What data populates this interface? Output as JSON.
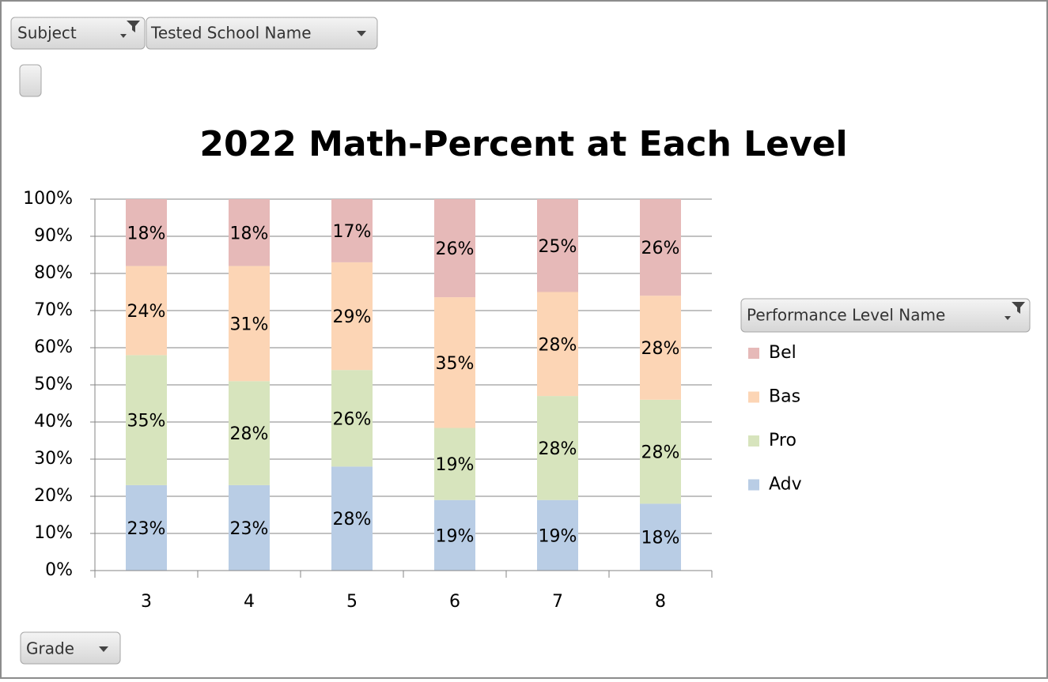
{
  "controls": {
    "subject": "Subject",
    "school": "Tested School Name",
    "legend_field": "Performance Level Name",
    "grade": "Grade"
  },
  "chart_data": {
    "type": "stacked_bar",
    "title": "2022 Math-Percent at Each Level",
    "categories": [
      "3",
      "4",
      "5",
      "6",
      "7",
      "8"
    ],
    "series": [
      {
        "name": "Adv",
        "color": "#b9cde5",
        "values": [
          23,
          23,
          28,
          19,
          19,
          18
        ],
        "value_labels": [
          "23%",
          "23%",
          "28%",
          "19%",
          "19%",
          "18%"
        ]
      },
      {
        "name": "Pro",
        "color": "#d7e4bd",
        "values": [
          35,
          28,
          26,
          19.4,
          28,
          28
        ],
        "value_labels": [
          "35%",
          "28%",
          "26%",
          "19%",
          "28%",
          "28%"
        ]
      },
      {
        "name": "Bas",
        "color": "#fcd5b5",
        "values": [
          24,
          31,
          29,
          35.2,
          28,
          28
        ],
        "value_labels": [
          "24%",
          "31%",
          "29%",
          "35%",
          "28%",
          "28%"
        ]
      },
      {
        "name": "Bel",
        "color": "#e6b9b8",
        "values": [
          18,
          18,
          17,
          26.4,
          25,
          26
        ],
        "value_labels": [
          "18%",
          "18%",
          "17%",
          "26%",
          "25%",
          "26%"
        ]
      }
    ],
    "ylim": [
      0,
      100
    ],
    "yticks": [
      {
        "value": 0,
        "label": "0%"
      },
      {
        "value": 10,
        "label": "10%"
      },
      {
        "value": 20,
        "label": "20%"
      },
      {
        "value": 30,
        "label": "30%"
      },
      {
        "value": 40,
        "label": "40%"
      },
      {
        "value": 50,
        "label": "50%"
      },
      {
        "value": 60,
        "label": "60%"
      },
      {
        "value": 70,
        "label": "70%"
      },
      {
        "value": 80,
        "label": "80%"
      },
      {
        "value": 90,
        "label": "90%"
      },
      {
        "value": 100,
        "label": "100%"
      }
    ],
    "grid": true,
    "legend": "right"
  }
}
